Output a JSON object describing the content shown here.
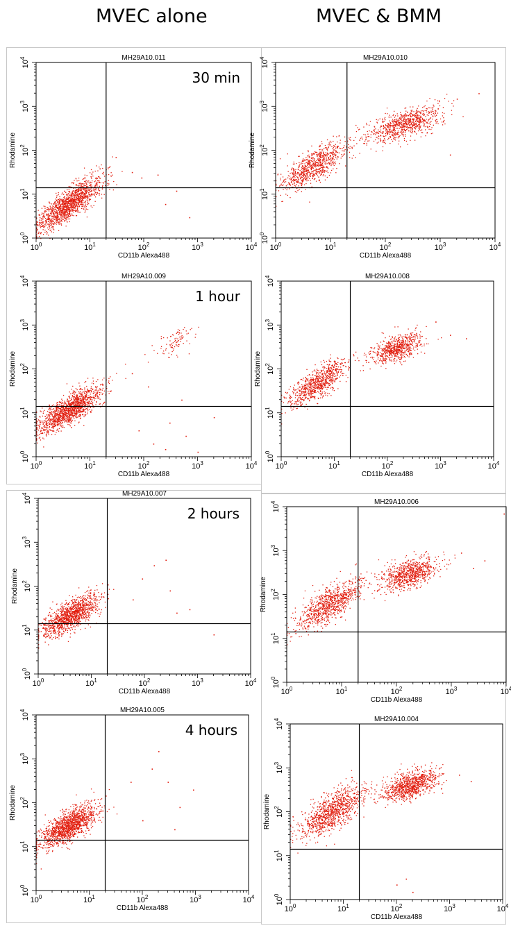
{
  "header": {
    "left_title": "MVEC alone",
    "right_title": "MVEC & BMM"
  },
  "chart_data": [
    {
      "type": "scatter",
      "file": "MH29A10.011",
      "timepoint": "30 min",
      "condition": "MVEC alone",
      "xlabel": "CD11b Alexa488",
      "ylabel": "Rhodamine",
      "xscale": "log",
      "yscale": "log",
      "xlim": [
        1,
        10000
      ],
      "ylim": [
        1,
        10000
      ],
      "gate": {
        "x": 20,
        "y": 14
      },
      "clusters": [
        {
          "cx": 4,
          "cy": 6,
          "sx": 0.3,
          "sy": 0.3,
          "rho": 0.82,
          "n": 1400
        }
      ],
      "sparse": [
        {
          "x": 180,
          "y": 28
        },
        {
          "x": 60,
          "y": 32
        },
        {
          "x": 250,
          "y": 6
        },
        {
          "x": 700,
          "y": 3
        },
        {
          "x": 400,
          "y": 12
        },
        {
          "x": 30,
          "y": 70
        },
        {
          "x": 90,
          "y": 24
        }
      ]
    },
    {
      "type": "scatter",
      "file": "MH29A10.010",
      "timepoint": "30 min",
      "condition": "MVEC & BMM",
      "xlabel": "CD11b Alexa488",
      "ylabel": "Rhodamine",
      "xscale": "log",
      "yscale": "log",
      "xlim": [
        1,
        10000
      ],
      "ylim": [
        1,
        10000
      ],
      "gate": {
        "x": 20,
        "y": 14
      },
      "clusters": [
        {
          "cx": 5,
          "cy": 45,
          "sx": 0.3,
          "sy": 0.28,
          "rho": 0.75,
          "n": 800
        },
        {
          "cx": 220,
          "cy": 400,
          "sx": 0.33,
          "sy": 0.2,
          "rho": 0.6,
          "n": 800
        }
      ],
      "sparse": [
        {
          "x": 2000,
          "y": 1500
        },
        {
          "x": 900,
          "y": 900
        },
        {
          "x": 5000,
          "y": 2000
        },
        {
          "x": 1500,
          "y": 80
        }
      ]
    },
    {
      "type": "scatter",
      "file": "MH29A10.009",
      "timepoint": "1 hour",
      "condition": "MVEC alone",
      "xlabel": "CD11b Alexa488",
      "ylabel": "Rhodamine",
      "xscale": "log",
      "yscale": "log",
      "xlim": [
        1,
        10000
      ],
      "ylim": [
        1,
        10000
      ],
      "gate": {
        "x": 20,
        "y": 14
      },
      "clusters": [
        {
          "cx": 4,
          "cy": 12,
          "sx": 0.3,
          "sy": 0.26,
          "rho": 0.78,
          "n": 1400
        },
        {
          "cx": 350,
          "cy": 400,
          "sx": 0.17,
          "sy": 0.17,
          "rho": 0.6,
          "n": 90
        }
      ],
      "sparse": [
        {
          "x": 80,
          "y": 4
        },
        {
          "x": 150,
          "y": 2
        },
        {
          "x": 300,
          "y": 6
        },
        {
          "x": 600,
          "y": 3
        },
        {
          "x": 250,
          "y": 1.5
        },
        {
          "x": 120,
          "y": 40
        },
        {
          "x": 500,
          "y": 20
        },
        {
          "x": 2000,
          "y": 8
        },
        {
          "x": 1000,
          "y": 1.3
        },
        {
          "x": 60,
          "y": 80
        }
      ]
    },
    {
      "type": "scatter",
      "file": "MH29A10.008",
      "timepoint": "1 hour",
      "condition": "MVEC & BMM",
      "xlabel": "CD11b Alexa488",
      "ylabel": "Rhodamine",
      "xscale": "log",
      "yscale": "log",
      "xlim": [
        1,
        10000
      ],
      "ylim": [
        1,
        10000
      ],
      "gate": {
        "x": 20,
        "y": 14
      },
      "clusters": [
        {
          "cx": 5,
          "cy": 50,
          "sx": 0.28,
          "sy": 0.26,
          "rho": 0.75,
          "n": 800
        },
        {
          "cx": 150,
          "cy": 300,
          "sx": 0.24,
          "sy": 0.18,
          "rho": 0.55,
          "n": 700
        }
      ],
      "sparse": [
        {
          "x": 1500,
          "y": 600
        },
        {
          "x": 3000,
          "y": 500
        },
        {
          "x": 800,
          "y": 1200
        }
      ]
    },
    {
      "type": "scatter",
      "file": "MH29A10.007",
      "timepoint": "2 hours",
      "condition": "MVEC alone",
      "xlabel": "CD11b Alexa488",
      "ylabel": "Rhodamine",
      "xscale": "log",
      "yscale": "log",
      "xlim": [
        1,
        10000
      ],
      "ylim": [
        1,
        10000
      ],
      "gate": {
        "x": 20,
        "y": 14
      },
      "clusters": [
        {
          "cx": 4,
          "cy": 22,
          "sx": 0.27,
          "sy": 0.23,
          "rho": 0.7,
          "n": 1200
        }
      ],
      "sparse": [
        {
          "x": 150,
          "y": 300
        },
        {
          "x": 250,
          "y": 400
        },
        {
          "x": 400,
          "y": 25
        },
        {
          "x": 700,
          "y": 30
        },
        {
          "x": 2000,
          "y": 8
        },
        {
          "x": 90,
          "y": 150
        },
        {
          "x": 300,
          "y": 80
        },
        {
          "x": 60,
          "y": 50
        }
      ]
    },
    {
      "type": "scatter",
      "file": "MH29A10.006",
      "timepoint": "2 hours",
      "condition": "MVEC & BMM",
      "xlabel": "CD11b Alexa488",
      "ylabel": "Rhodamine",
      "xscale": "log",
      "yscale": "log",
      "xlim": [
        1,
        10000
      ],
      "ylim": [
        1,
        10000
      ],
      "gate": {
        "x": 20,
        "y": 14
      },
      "clusters": [
        {
          "cx": 6,
          "cy": 60,
          "sx": 0.3,
          "sy": 0.28,
          "rho": 0.75,
          "n": 900
        },
        {
          "cx": 170,
          "cy": 300,
          "sx": 0.26,
          "sy": 0.18,
          "rho": 0.5,
          "n": 800
        }
      ],
      "sparse": [
        {
          "x": 9000,
          "y": 7000
        },
        {
          "x": 2500,
          "y": 400
        },
        {
          "x": 1500,
          "y": 900
        },
        {
          "x": 4000,
          "y": 600
        }
      ]
    },
    {
      "type": "scatter",
      "file": "MH29A10.005",
      "timepoint": "4 hours",
      "condition": "MVEC alone",
      "xlabel": "CD11b Alexa488",
      "ylabel": "Rhodamine",
      "xscale": "log",
      "yscale": "log",
      "xlim": [
        1,
        10000
      ],
      "ylim": [
        1,
        10000
      ],
      "gate": {
        "x": 20,
        "y": 14
      },
      "clusters": [
        {
          "cx": 4,
          "cy": 30,
          "sx": 0.28,
          "sy": 0.24,
          "rho": 0.72,
          "n": 1400
        }
      ],
      "sparse": [
        {
          "x": 200,
          "y": 1500
        },
        {
          "x": 300,
          "y": 300
        },
        {
          "x": 150,
          "y": 600
        },
        {
          "x": 500,
          "y": 80
        },
        {
          "x": 900,
          "y": 200
        },
        {
          "x": 100,
          "y": 40
        },
        {
          "x": 60,
          "y": 300
        },
        {
          "x": 400,
          "y": 25
        }
      ]
    },
    {
      "type": "scatter",
      "file": "MH29A10.004",
      "timepoint": "4 hours",
      "condition": "MVEC & BMM",
      "xlabel": "CD11b Alexa488",
      "ylabel": "Rhodamine",
      "xscale": "log",
      "yscale": "log",
      "xlim": [
        1,
        10000
      ],
      "ylim": [
        1,
        10000
      ],
      "gate": {
        "x": 20,
        "y": 14
      },
      "clusters": [
        {
          "cx": 6,
          "cy": 100,
          "sx": 0.3,
          "sy": 0.28,
          "rho": 0.7,
          "n": 1000
        },
        {
          "cx": 180,
          "cy": 400,
          "sx": 0.26,
          "sy": 0.17,
          "rho": 0.5,
          "n": 900
        }
      ],
      "sparse": [
        {
          "x": 150,
          "y": 3
        },
        {
          "x": 200,
          "y": 1.5
        },
        {
          "x": 100,
          "y": 2.2
        },
        {
          "x": 2500,
          "y": 500
        },
        {
          "x": 1500,
          "y": 700
        }
      ]
    }
  ]
}
